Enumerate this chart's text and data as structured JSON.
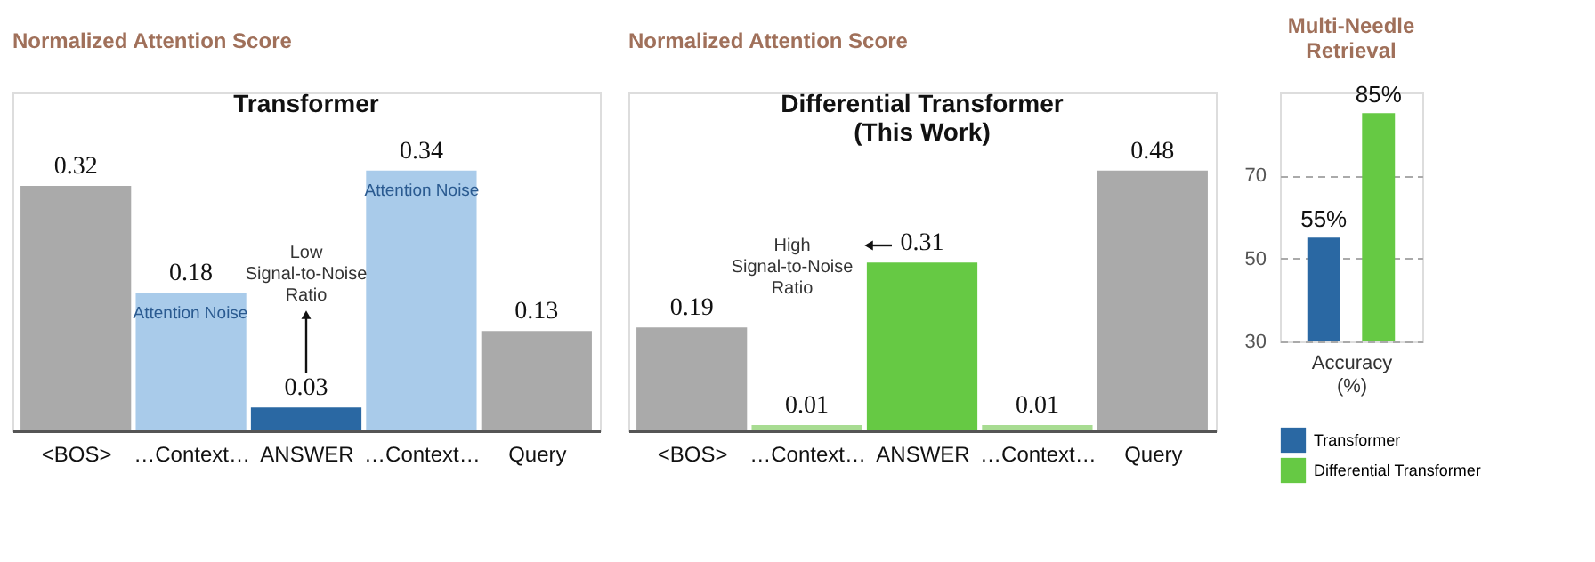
{
  "chart_data": [
    {
      "type": "bar",
      "ylabel": "Normalized Attention Score",
      "title": "Transformer",
      "categories": [
        "<BOS>",
        "…Context…",
        "ANSWER",
        "…Context…",
        "Query"
      ],
      "values": [
        0.32,
        0.18,
        0.03,
        0.34,
        0.13
      ],
      "colors": [
        "#aaaaaa",
        "#a9cbea",
        "#2a68a3",
        "#a9cbea",
        "#aaaaaa"
      ],
      "data_labels": true,
      "tick_labels": "x",
      "annotations": [
        "Attention Noise",
        "Low\nSignal-to-Noise\nRatio",
        "Attention Noise"
      ]
    },
    {
      "type": "bar",
      "ylabel": "Normalized Attention Score",
      "title": "Differential Transformer\n(This Work)",
      "categories": [
        "<BOS>",
        "…Context…",
        "ANSWER",
        "…Context…",
        "Query"
      ],
      "values": [
        0.19,
        0.01,
        0.31,
        0.01,
        0.48
      ],
      "colors": [
        "#aaaaaa",
        "#a8dc92",
        "#66c944",
        "#a8dc92",
        "#aaaaaa"
      ],
      "data_labels": true,
      "tick_labels": "x",
      "annotations": [
        "High\nSignal-to-Noise\nRatio"
      ]
    },
    {
      "type": "bar",
      "title": "Multi-Needle\nRetrieval",
      "xlabel": "Accuracy\n(%)",
      "categories": [
        null
      ],
      "ylim": [
        30,
        90
      ],
      "yticks": [
        30,
        50,
        70
      ],
      "grid": "y",
      "tick_labels": "y",
      "legend": "bottom",
      "series": [
        {
          "name": "Transformer",
          "color": "#2a68a3",
          "values": [
            55
          ],
          "value_labels": [
            "55%"
          ]
        },
        {
          "name": "Differential Transformer",
          "color": "#66c944",
          "values": [
            85
          ],
          "value_labels": [
            "85%"
          ]
        }
      ]
    }
  ]
}
